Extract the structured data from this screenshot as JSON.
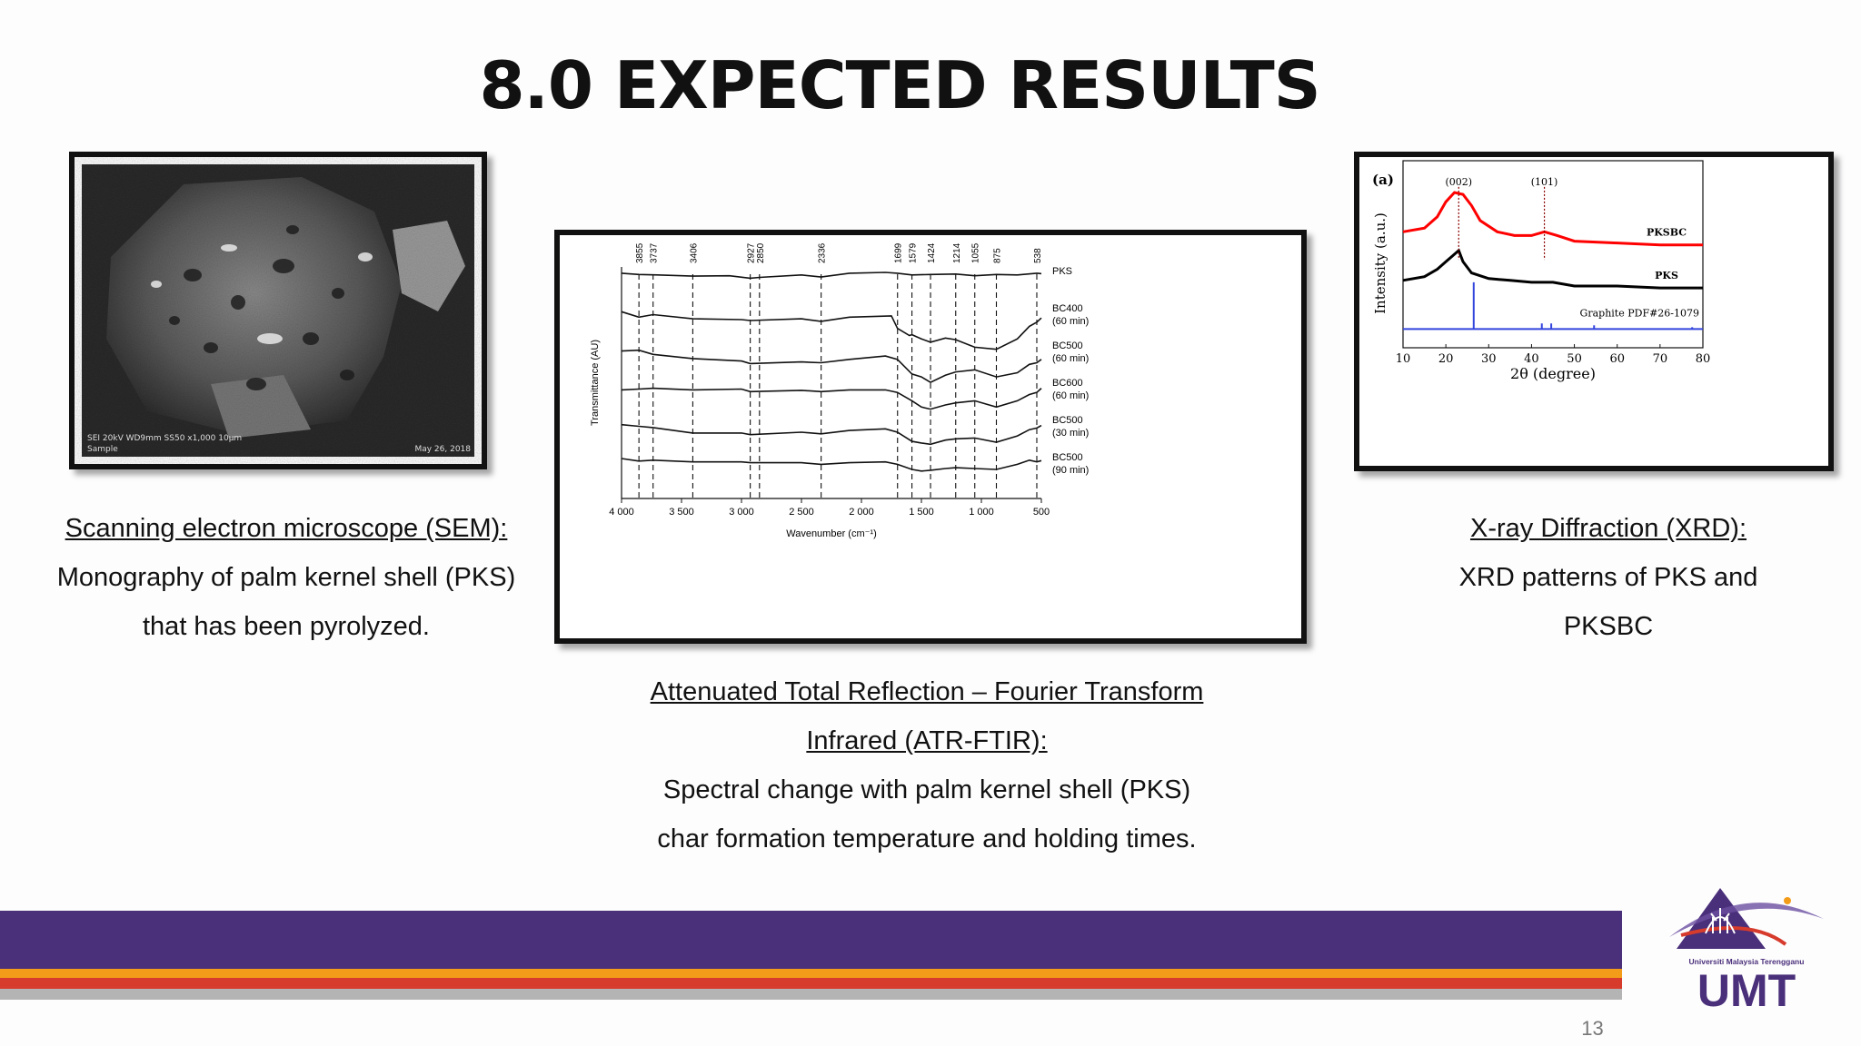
{
  "slide": {
    "title": "8.0 EXPECTED RESULTS",
    "page_number": "13"
  },
  "sem_image": {
    "bar_left": "SEI  20kV  WD9mm SS50  x1,000  10μm",
    "bar_left2": "Sample",
    "bar_right": "May 26, 2018"
  },
  "captions": {
    "sem": {
      "heading": "Scanning electron microscope (SEM):",
      "lines": [
        "Monography of palm kernel shell (PKS)",
        "that has been pyrolyzed."
      ]
    },
    "ftir": {
      "heading_lines": [
        "Attenuated Total Reflection – Fourier Transform",
        "Infrared (ATR-FTIR):"
      ],
      "lines": [
        "Spectral change with palm kernel shell (PKS)",
        "char formation temperature and holding times."
      ]
    },
    "xrd": {
      "heading": "X-ray Diffraction (XRD):",
      "lines": [
        "XRD patterns of PKS and",
        "PKSBC"
      ]
    }
  },
  "logo": {
    "university": "Universiti Malaysia Terengganu",
    "abbr": "UMT",
    "colors": {
      "purple": "#4a2f7a",
      "orange": "#f39c1a",
      "red": "#d63b2c",
      "gray": "#b4b4b4"
    }
  },
  "chart_data": [
    {
      "type": "line",
      "xlabel": "Wavenumber (cm⁻¹)",
      "ylabel": "Transmittance (AU)",
      "xlim": [
        4000,
        500
      ],
      "x_ticks": [
        "4 000",
        "3 500",
        "3 000",
        "2 500",
        "2 000",
        "1 500",
        "1 000",
        "500"
      ],
      "peak_lines": [
        3855,
        3737,
        3406,
        2927,
        2850,
        2336,
        1699,
        1579,
        1424,
        1214,
        1055,
        875,
        538
      ],
      "peak_labels": [
        "3855",
        "3737",
        "3406",
        "2927",
        "2850",
        "2336",
        "1699",
        "1579",
        "1424",
        "1214",
        "1055",
        "875",
        "538"
      ],
      "series": [
        {
          "name": "PKS",
          "label_lines": [
            "PKS"
          ],
          "offset": 0,
          "points": [
            [
              4000,
              0.02
            ],
            [
              3855,
              0.05
            ],
            [
              3700,
              0.06
            ],
            [
              3406,
              0.09
            ],
            [
              3100,
              0.08
            ],
            [
              2927,
              0.14
            ],
            [
              2850,
              0.12
            ],
            [
              2500,
              0.06
            ],
            [
              2336,
              0.11
            ],
            [
              2100,
              0.02
            ],
            [
              1800,
              0.0
            ],
            [
              1700,
              0.02
            ],
            [
              1579,
              0.06
            ],
            [
              1424,
              0.05
            ],
            [
              1214,
              0.04
            ],
            [
              1055,
              0.08
            ],
            [
              875,
              0.05
            ],
            [
              700,
              0.06
            ],
            [
              538,
              0.02
            ],
            [
              500,
              0.03
            ]
          ]
        },
        {
          "name": "BC400 (60 min)",
          "label_lines": [
            "BC400",
            "(60 min)"
          ],
          "offset": 1,
          "points": [
            [
              4000,
              0.05
            ],
            [
              3855,
              0.18
            ],
            [
              3737,
              0.12
            ],
            [
              3406,
              0.22
            ],
            [
              3000,
              0.24
            ],
            [
              2927,
              0.26
            ],
            [
              2500,
              0.22
            ],
            [
              2336,
              0.28
            ],
            [
              2100,
              0.18
            ],
            [
              1750,
              0.15
            ],
            [
              1699,
              0.45
            ],
            [
              1600,
              0.62
            ],
            [
              1579,
              0.6
            ],
            [
              1500,
              0.7
            ],
            [
              1424,
              0.78
            ],
            [
              1300,
              0.68
            ],
            [
              1214,
              0.72
            ],
            [
              1055,
              0.9
            ],
            [
              875,
              0.95
            ],
            [
              700,
              0.7
            ],
            [
              600,
              0.4
            ],
            [
              538,
              0.3
            ],
            [
              500,
              0.2
            ]
          ]
        },
        {
          "name": "BC500 (60 min)",
          "label_lines": [
            "BC500",
            "(60 min)"
          ],
          "offset": 2,
          "points": [
            [
              4000,
              0.1
            ],
            [
              3855,
              0.08
            ],
            [
              3737,
              0.18
            ],
            [
              3406,
              0.28
            ],
            [
              3000,
              0.34
            ],
            [
              2927,
              0.4
            ],
            [
              2500,
              0.36
            ],
            [
              2336,
              0.38
            ],
            [
              2100,
              0.3
            ],
            [
              1800,
              0.22
            ],
            [
              1700,
              0.3
            ],
            [
              1579,
              0.65
            ],
            [
              1500,
              0.72
            ],
            [
              1424,
              0.85
            ],
            [
              1300,
              0.68
            ],
            [
              1214,
              0.6
            ],
            [
              1055,
              0.55
            ],
            [
              875,
              0.72
            ],
            [
              700,
              0.62
            ],
            [
              600,
              0.42
            ],
            [
              538,
              0.38
            ],
            [
              500,
              0.3
            ]
          ]
        },
        {
          "name": "BC600 (60 min)",
          "label_lines": [
            "BC600",
            "(60 min)"
          ],
          "offset": 3,
          "points": [
            [
              4000,
              0.14
            ],
            [
              3855,
              0.12
            ],
            [
              3737,
              0.1
            ],
            [
              3406,
              0.14
            ],
            [
              3000,
              0.12
            ],
            [
              2927,
              0.18
            ],
            [
              2500,
              0.15
            ],
            [
              2336,
              0.18
            ],
            [
              2100,
              0.14
            ],
            [
              1800,
              0.14
            ],
            [
              1700,
              0.2
            ],
            [
              1579,
              0.4
            ],
            [
              1500,
              0.55
            ],
            [
              1424,
              0.6
            ],
            [
              1300,
              0.5
            ],
            [
              1214,
              0.45
            ],
            [
              1055,
              0.4
            ],
            [
              875,
              0.55
            ],
            [
              700,
              0.4
            ],
            [
              600,
              0.25
            ],
            [
              538,
              0.2
            ],
            [
              500,
              0.1
            ]
          ]
        },
        {
          "name": "BC500 (30 min)",
          "label_lines": [
            "BC500",
            "(30 min)"
          ],
          "offset": 4,
          "points": [
            [
              4000,
              0.08
            ],
            [
              3855,
              0.12
            ],
            [
              3737,
              0.15
            ],
            [
              3406,
              0.28
            ],
            [
              3000,
              0.28
            ],
            [
              2927,
              0.32
            ],
            [
              2500,
              0.26
            ],
            [
              2336,
              0.3
            ],
            [
              2100,
              0.22
            ],
            [
              1800,
              0.18
            ],
            [
              1700,
              0.26
            ],
            [
              1579,
              0.48
            ],
            [
              1500,
              0.52
            ],
            [
              1424,
              0.55
            ],
            [
              1300,
              0.45
            ],
            [
              1214,
              0.42
            ],
            [
              1055,
              0.4
            ],
            [
              875,
              0.5
            ],
            [
              700,
              0.35
            ],
            [
              600,
              0.2
            ],
            [
              538,
              0.16
            ],
            [
              500,
              0.1
            ]
          ]
        },
        {
          "name": "BC500 (90 min)",
          "label_lines": [
            "BC500",
            "(90 min)"
          ],
          "offset": 5,
          "points": [
            [
              4000,
              0.0
            ],
            [
              3855,
              0.06
            ],
            [
              3737,
              0.04
            ],
            [
              3406,
              0.08
            ],
            [
              3000,
              0.08
            ],
            [
              2927,
              0.1
            ],
            [
              2500,
              0.1
            ],
            [
              2336,
              0.14
            ],
            [
              2100,
              0.1
            ],
            [
              1800,
              0.08
            ],
            [
              1700,
              0.14
            ],
            [
              1579,
              0.26
            ],
            [
              1500,
              0.3
            ],
            [
              1424,
              0.28
            ],
            [
              1300,
              0.24
            ],
            [
              1214,
              0.22
            ],
            [
              1055,
              0.24
            ],
            [
              875,
              0.26
            ],
            [
              700,
              0.14
            ],
            [
              600,
              0.04
            ],
            [
              538,
              0.08
            ],
            [
              500,
              0.05
            ]
          ]
        }
      ]
    },
    {
      "type": "line",
      "panel_label": "(a)",
      "xlabel": "2θ (degree)",
      "ylabel": "Intensity (a.u.)",
      "xlim": [
        10,
        80
      ],
      "x_ticks": [
        10,
        20,
        30,
        40,
        50,
        60,
        70,
        80
      ],
      "peak_labels": [
        {
          "text": "(002)",
          "x": 23
        },
        {
          "text": "(101)",
          "x": 43
        }
      ],
      "series": [
        {
          "name": "PKSBC",
          "color": "#ff0000",
          "points": [
            [
              10,
              0.62
            ],
            [
              15,
              0.64
            ],
            [
              18,
              0.7
            ],
            [
              20,
              0.78
            ],
            [
              22,
              0.83
            ],
            [
              24,
              0.82
            ],
            [
              26,
              0.76
            ],
            [
              28,
              0.68
            ],
            [
              32,
              0.62
            ],
            [
              36,
              0.6
            ],
            [
              40,
              0.6
            ],
            [
              43,
              0.62
            ],
            [
              46,
              0.6
            ],
            [
              50,
              0.57
            ],
            [
              60,
              0.56
            ],
            [
              70,
              0.55
            ],
            [
              80,
              0.55
            ]
          ]
        },
        {
          "name": "PKS",
          "color": "#000000",
          "points": [
            [
              10,
              0.36
            ],
            [
              15,
              0.38
            ],
            [
              18,
              0.42
            ],
            [
              20,
              0.46
            ],
            [
              22,
              0.5
            ],
            [
              23,
              0.52
            ],
            [
              24,
              0.46
            ],
            [
              26,
              0.4
            ],
            [
              30,
              0.37
            ],
            [
              35,
              0.36
            ],
            [
              40,
              0.35
            ],
            [
              45,
              0.35
            ],
            [
              50,
              0.33
            ],
            [
              60,
              0.33
            ],
            [
              70,
              0.32
            ],
            [
              80,
              0.32
            ]
          ]
        },
        {
          "name": "Graphite PDF#26-1079",
          "color": "#3344dd",
          "type": "stick",
          "sticks": [
            [
              26.5,
              0.25
            ],
            [
              42.4,
              0.03
            ],
            [
              44.6,
              0.03
            ],
            [
              54.6,
              0.02
            ],
            [
              77.5,
              0.01
            ]
          ]
        }
      ]
    }
  ]
}
